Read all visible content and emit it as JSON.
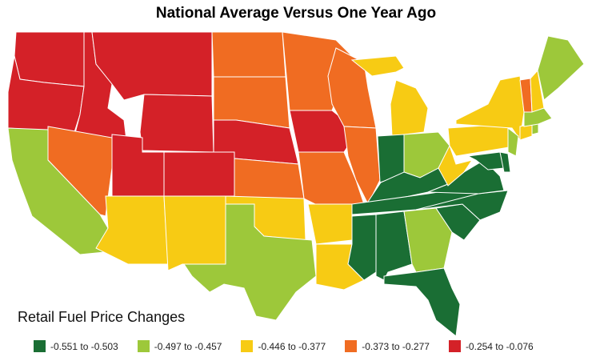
{
  "title": "National Average Versus One Year Ago",
  "legend_title": "Retail Fuel Price Changes",
  "legend": [
    {
      "label": "-0.551 to -0.503",
      "color": "#1a6e34"
    },
    {
      "label": "-0.497 to -0.457",
      "color": "#9dc83a"
    },
    {
      "label": "-0.446 to -0.377",
      "color": "#f7cb14"
    },
    {
      "label": "-0.373 to -0.277",
      "color": "#f06c22"
    },
    {
      "label": "-0.254 to -0.076",
      "color": "#d42128"
    }
  ],
  "states": [
    {
      "id": "WA",
      "bin": 4
    },
    {
      "id": "OR",
      "bin": 4
    },
    {
      "id": "ID",
      "bin": 4
    },
    {
      "id": "MT",
      "bin": 4
    },
    {
      "id": "WY",
      "bin": 4
    },
    {
      "id": "UT",
      "bin": 4
    },
    {
      "id": "CO",
      "bin": 4
    },
    {
      "id": "NE",
      "bin": 4
    },
    {
      "id": "IA",
      "bin": 4
    },
    {
      "id": "CA",
      "bin": 1
    },
    {
      "id": "NV",
      "bin": 3
    },
    {
      "id": "AZ",
      "bin": 2
    },
    {
      "id": "NM",
      "bin": 2
    },
    {
      "id": "ND",
      "bin": 3
    },
    {
      "id": "SD",
      "bin": 3
    },
    {
      "id": "MN",
      "bin": 3
    },
    {
      "id": "WI",
      "bin": 3
    },
    {
      "id": "KS",
      "bin": 3
    },
    {
      "id": "MO",
      "bin": 3
    },
    {
      "id": "IL",
      "bin": 3
    },
    {
      "id": "AR",
      "bin": 2
    },
    {
      "id": "OK",
      "bin": 2
    },
    {
      "id": "TX",
      "bin": 1
    },
    {
      "id": "LA",
      "bin": 2
    },
    {
      "id": "MI",
      "bin": 2
    },
    {
      "id": "IN",
      "bin": 0
    },
    {
      "id": "OH",
      "bin": 1
    },
    {
      "id": "KY",
      "bin": 0
    },
    {
      "id": "TN",
      "bin": 0
    },
    {
      "id": "MS",
      "bin": 0
    },
    {
      "id": "AL",
      "bin": 0
    },
    {
      "id": "GA",
      "bin": 1
    },
    {
      "id": "FL",
      "bin": 0
    },
    {
      "id": "SC",
      "bin": 0
    },
    {
      "id": "NC",
      "bin": 0
    },
    {
      "id": "VA",
      "bin": 0
    },
    {
      "id": "WV",
      "bin": 2
    },
    {
      "id": "PA",
      "bin": 2
    },
    {
      "id": "NY",
      "bin": 2
    },
    {
      "id": "MD",
      "bin": 0
    },
    {
      "id": "DE",
      "bin": 0
    },
    {
      "id": "NJ",
      "bin": 1
    },
    {
      "id": "CT",
      "bin": 2
    },
    {
      "id": "RI",
      "bin": 1
    },
    {
      "id": "MA",
      "bin": 1
    },
    {
      "id": "VT",
      "bin": 3
    },
    {
      "id": "NH",
      "bin": 2
    },
    {
      "id": "ME",
      "bin": 1
    }
  ]
}
